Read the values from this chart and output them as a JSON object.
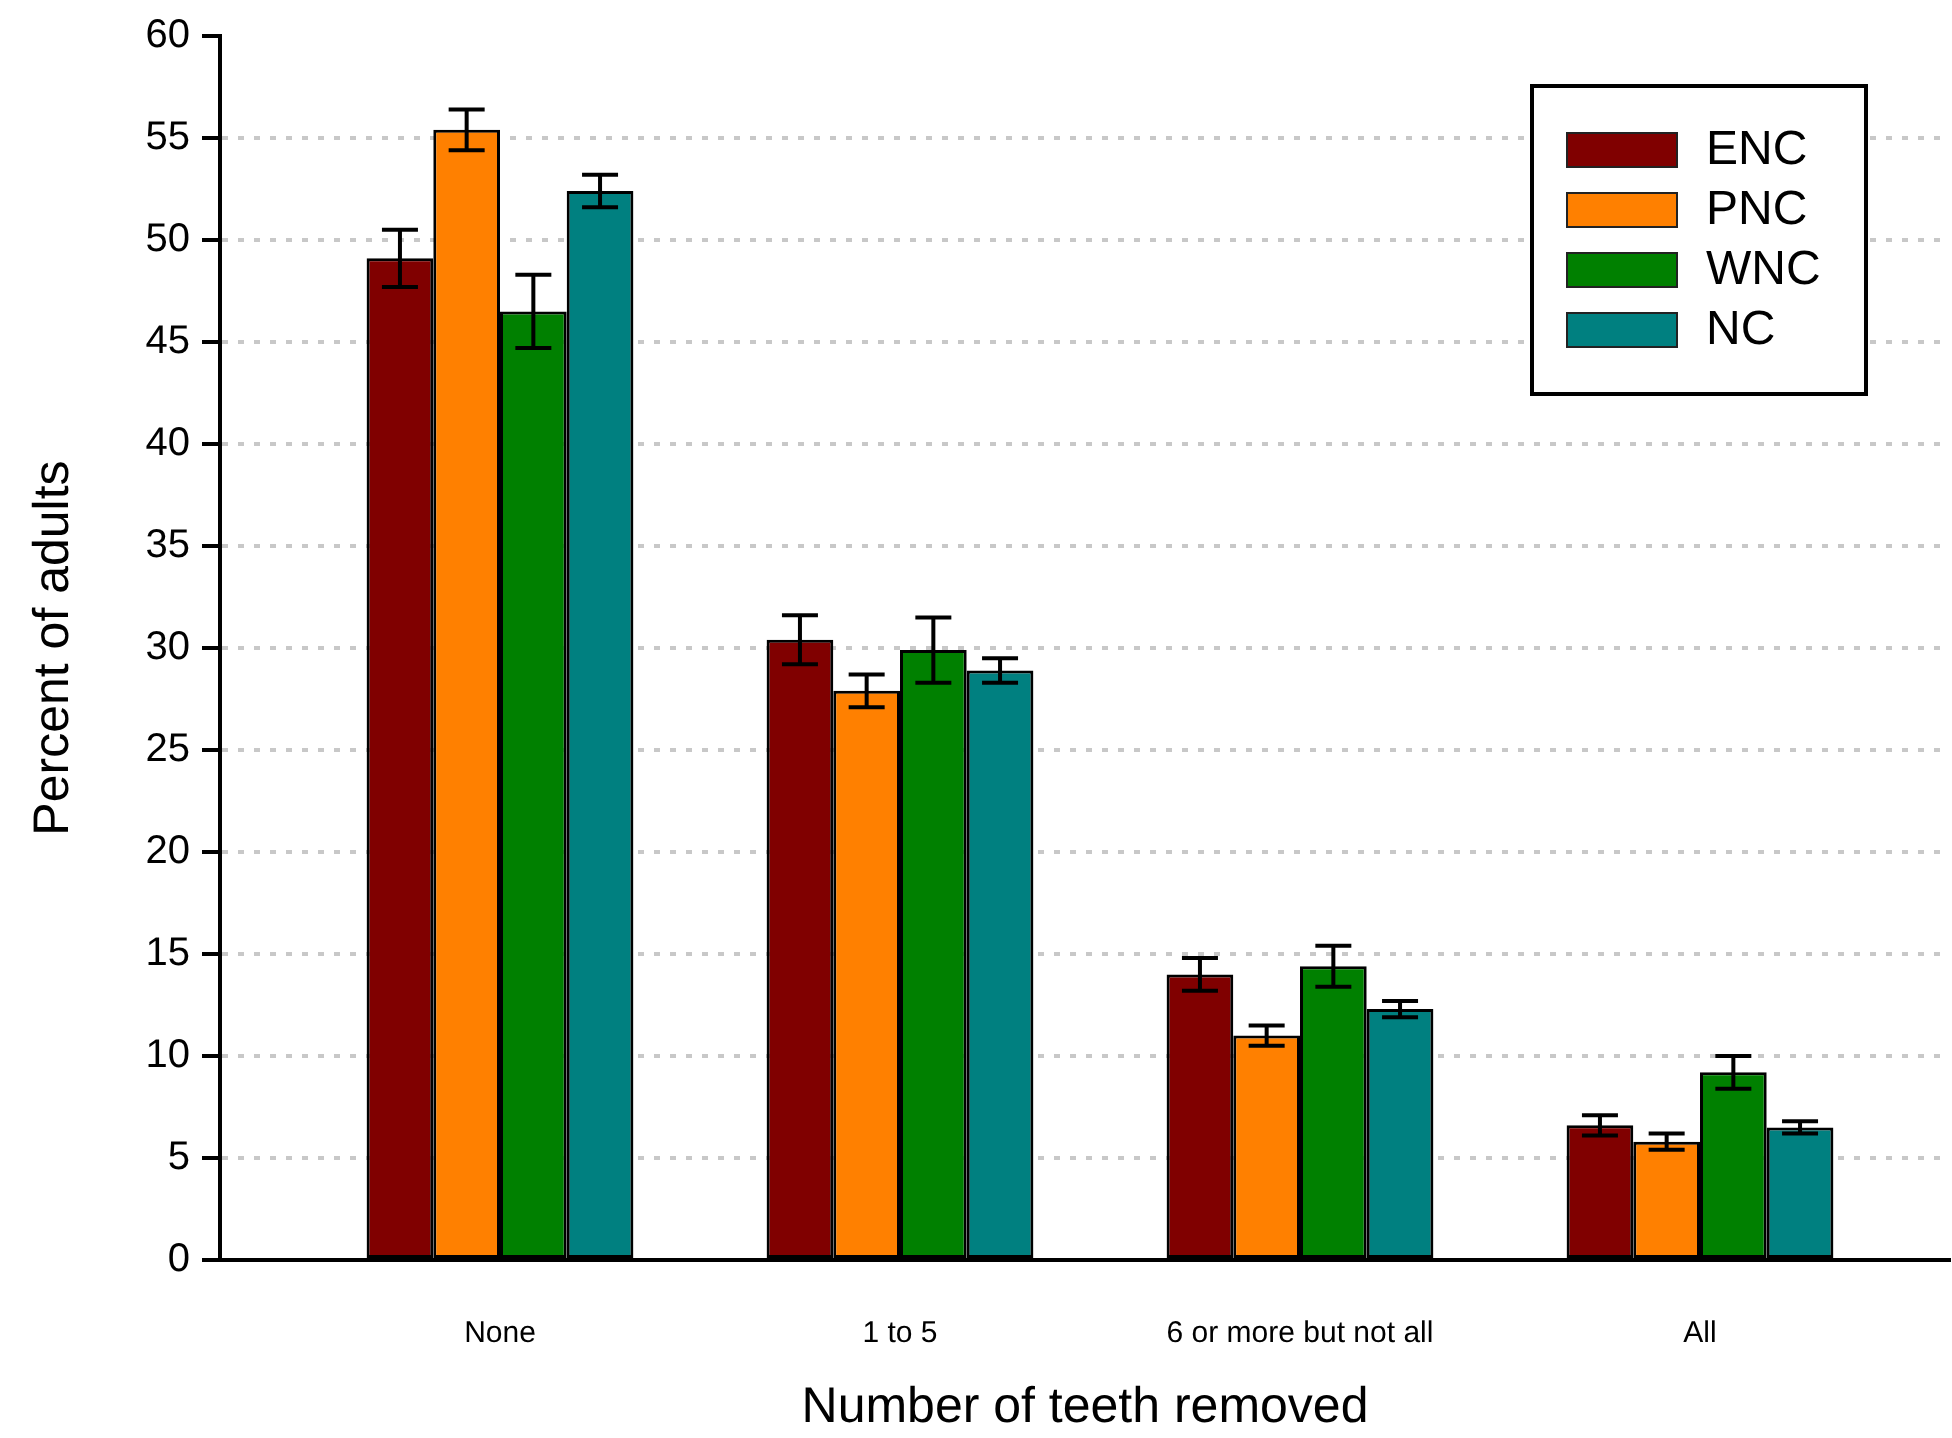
{
  "chart_data": {
    "type": "bar",
    "xlabel": "Number of teeth removed",
    "ylabel": "Percent of adults",
    "categories": [
      "None",
      "1 to 5",
      "6 or more but not all",
      "All"
    ],
    "series": [
      {
        "name": "ENC",
        "color": "#800000",
        "values": [
          49.1,
          30.4,
          14.0,
          6.6
        ],
        "errors": [
          1.4,
          1.2,
          0.8,
          0.5
        ]
      },
      {
        "name": "PNC",
        "color": "#ff8000",
        "values": [
          55.4,
          27.9,
          11.0,
          5.8
        ],
        "errors": [
          1.0,
          0.8,
          0.5,
          0.4
        ]
      },
      {
        "name": "WNC",
        "color": "#008000",
        "values": [
          46.5,
          29.9,
          14.4,
          9.2
        ],
        "errors": [
          1.8,
          1.6,
          1.0,
          0.8
        ]
      },
      {
        "name": "NC",
        "color": "#008080",
        "values": [
          52.4,
          28.9,
          12.3,
          6.5
        ],
        "errors": [
          0.8,
          0.6,
          0.4,
          0.3
        ]
      }
    ],
    "ylim": [
      0,
      60
    ],
    "yticks": [
      0,
      5,
      10,
      15,
      20,
      25,
      30,
      35,
      40,
      45,
      50,
      55,
      60
    ],
    "grid": "y",
    "legend": "top right"
  }
}
